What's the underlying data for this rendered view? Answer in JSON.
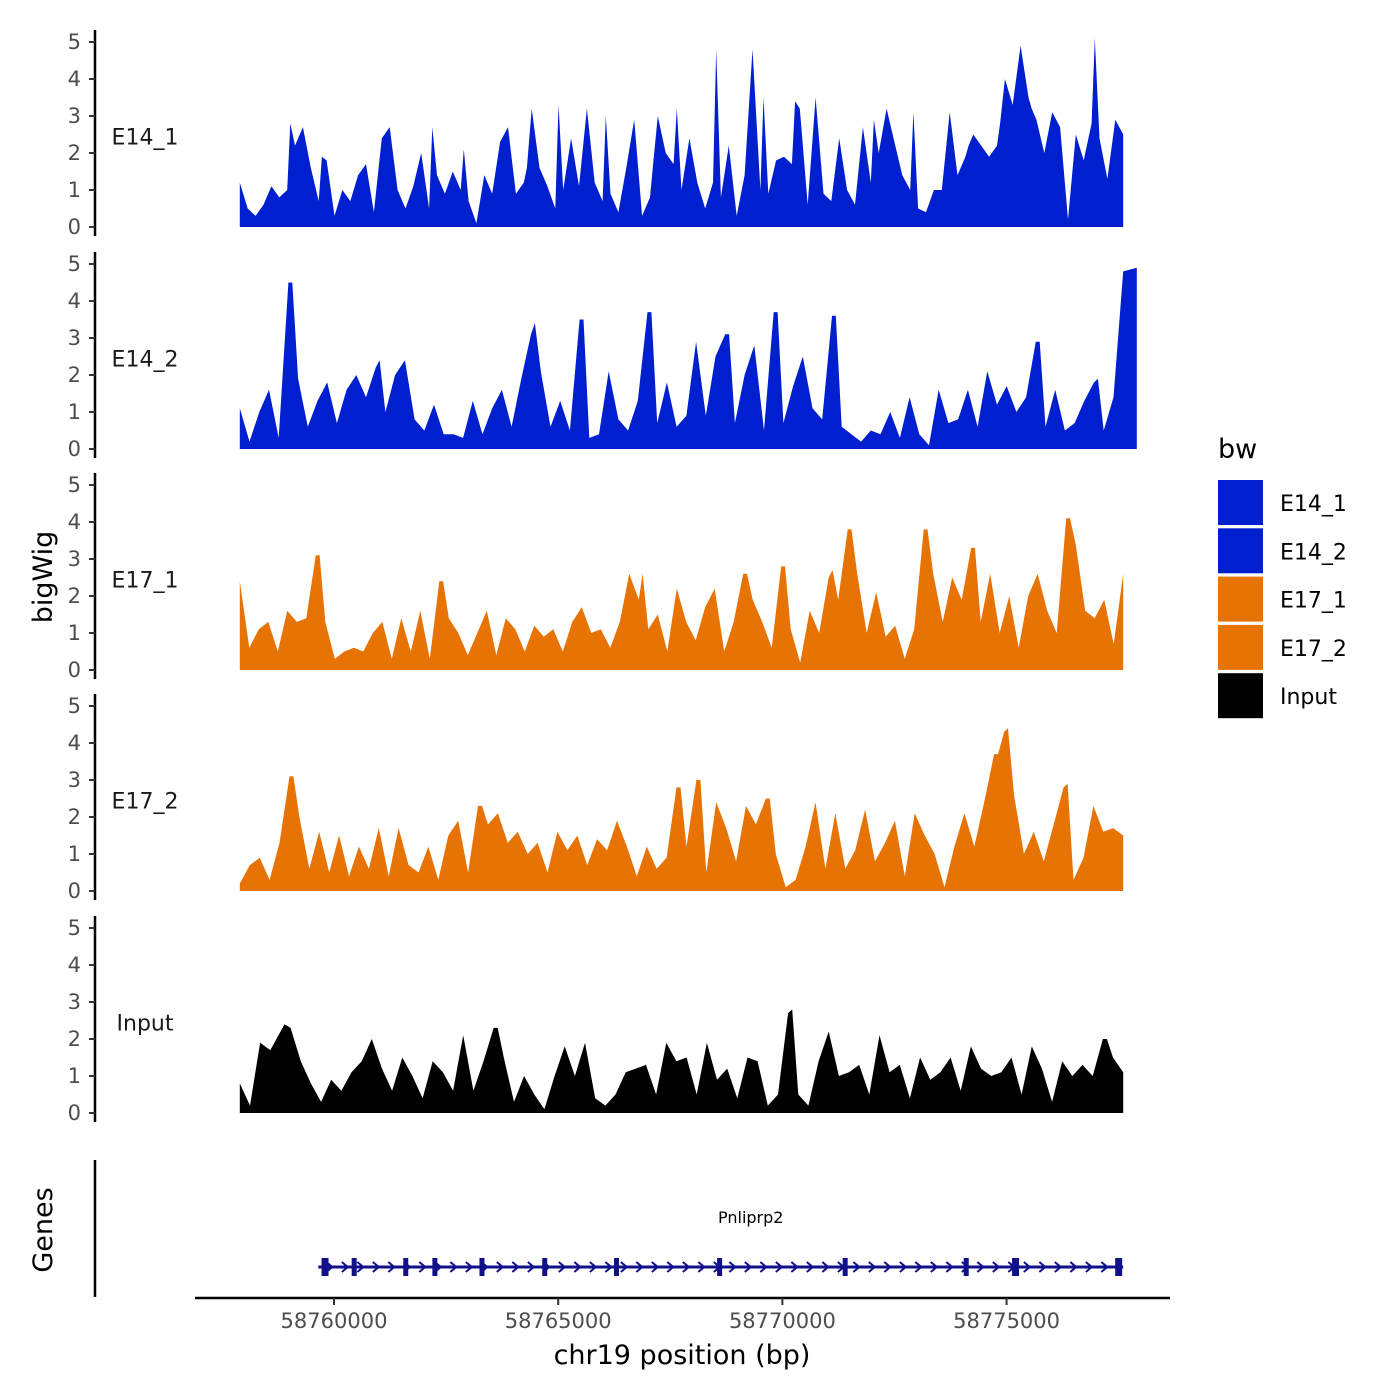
{
  "chart_data": {
    "type": "area",
    "y_axis_title": "bigWig",
    "x_axis_title": "chr19 position (bp)",
    "genes_track_title": "Genes",
    "y_ticks": [
      "0",
      "1",
      "2",
      "3",
      "4",
      "5"
    ],
    "ylim": [
      0,
      5.3
    ],
    "x_ticks": [
      "58760000",
      "58765000",
      "58770000",
      "58775000"
    ],
    "x_tick_values": [
      58760000,
      58765000,
      58770000,
      58775000
    ],
    "xlim": [
      58756900,
      58778600
    ],
    "data_x_range": [
      58757900,
      58777600
    ],
    "legend": {
      "title": "bw",
      "entries": [
        {
          "label": "E14_1",
          "color": "#0020D0"
        },
        {
          "label": "E14_2",
          "color": "#0020D0"
        },
        {
          "label": "E17_1",
          "color": "#E87305"
        },
        {
          "label": "E17_2",
          "color": "#E87305"
        },
        {
          "label": "Input",
          "color": "#000000"
        }
      ]
    },
    "series": [
      {
        "name": "E14_1",
        "color": "#0020D0",
        "values": [
          1.2,
          0.5,
          0.3,
          0.6,
          1.1,
          0.8,
          1.0,
          2.2,
          2.7,
          1.6,
          0.7,
          1.8,
          0.3,
          1.0,
          0.7,
          1.4,
          1.7,
          0.4,
          2.4,
          2.7,
          1.0,
          0.5,
          1.1,
          2.0,
          0.5,
          1.4,
          0.9,
          1.5,
          1.0,
          0.7,
          0.1,
          1.4,
          0.9,
          2.3,
          2.7,
          0.9,
          1.2,
          3.2,
          1.6,
          1.1,
          0.5,
          1.0,
          2.4,
          1.1,
          3.2,
          1.2,
          0.7,
          0.9,
          0.4,
          1.6,
          2.9,
          0.3,
          0.8,
          3.0,
          2.0,
          1.7,
          1.0,
          2.4,
          1.2,
          0.5,
          1.2,
          0.8,
          2.2,
          0.3,
          1.4,
          4.8,
          1.0,
          0.9,
          1.8,
          1.9,
          1.7,
          3.2,
          0.6,
          3.5,
          0.9,
          0.7,
          2.4,
          1.0,
          0.6,
          2.7,
          1.2,
          2.0,
          3.2,
          2.3,
          1.4,
          1.0,
          0.5,
          0.4,
          1.0,
          1.0,
          3.1,
          1.4,
          1.9,
          2.5,
          2.2,
          1.9,
          2.2,
          4.0,
          3.3,
          4.9,
          3.5,
          2.9,
          2.0,
          3.1,
          2.7,
          0.2,
          2.5,
          1.8,
          2.8,
          2.4,
          1.3,
          2.9,
          2.5
        ],
        "peaks": [
          [
            6,
            2.8
          ],
          [
            10,
            1.9
          ],
          [
            24,
            2.7
          ],
          [
            28,
            2.1
          ],
          [
            36,
            1.6
          ],
          [
            40,
            3.3
          ],
          [
            46,
            3.0
          ],
          [
            52,
            1.7
          ],
          [
            55,
            3.2
          ],
          [
            60,
            4.8
          ],
          [
            66,
            3.5
          ],
          [
            70,
            3.4
          ],
          [
            80,
            2.9
          ],
          [
            85,
            3.1
          ],
          [
            92,
            2.2
          ],
          [
            96,
            2.8
          ],
          [
            100,
            3.2
          ],
          [
            108,
            5.1
          ]
        ]
      },
      {
        "name": "E14_2",
        "color": "#0020D0",
        "values": [
          1.1,
          0.2,
          1.0,
          1.6,
          0.3,
          4.5,
          1.9,
          0.6,
          1.3,
          1.8,
          0.7,
          1.6,
          2.0,
          1.4,
          2.2,
          1.0,
          2.0,
          2.4,
          0.8,
          0.5,
          1.2,
          0.4,
          0.4,
          0.3,
          1.3,
          0.4,
          1.1,
          1.6,
          0.6,
          1.9,
          3.1,
          2.1,
          0.6,
          1.3,
          0.5,
          3.5,
          0.3,
          0.4,
          2.1,
          0.8,
          0.5,
          1.3,
          3.7,
          0.7,
          1.8,
          0.6,
          0.9,
          2.9,
          0.9,
          2.5,
          3.1,
          0.7,
          2.0,
          2.8,
          0.5,
          3.7,
          0.7,
          1.7,
          2.5,
          1.1,
          0.8,
          3.6,
          0.6,
          0.4,
          0.2,
          0.5,
          0.4,
          1.0,
          0.3,
          1.4,
          0.4,
          0.1,
          1.6,
          0.7,
          0.8,
          1.6,
          0.6,
          2.1,
          1.2,
          1.7,
          1.0,
          1.4,
          2.9,
          0.6,
          1.6,
          0.5,
          0.7,
          1.3,
          1.8,
          0.5,
          1.4,
          4.8
        ],
        "peaks": [
          [
            5,
            4.5
          ],
          [
            14,
            2.4
          ],
          [
            30,
            3.4
          ],
          [
            35,
            3.5
          ],
          [
            42,
            3.7
          ],
          [
            50,
            3.1
          ],
          [
            55,
            3.7
          ],
          [
            61,
            3.6
          ],
          [
            82,
            2.9
          ],
          [
            88,
            1.9
          ],
          [
            92,
            4.9
          ]
        ]
      },
      {
        "name": "E17_1",
        "color": "#E87305",
        "values": [
          2.4,
          0.6,
          1.1,
          1.3,
          0.5,
          1.6,
          1.3,
          1.4,
          3.1,
          1.3,
          0.3,
          0.5,
          0.6,
          0.5,
          1.0,
          1.3,
          0.3,
          1.4,
          0.5,
          1.6,
          0.3,
          2.4,
          1.4,
          1.0,
          0.4,
          1.0,
          1.6,
          0.4,
          1.4,
          1.1,
          0.5,
          1.2,
          0.9,
          1.1,
          0.5,
          1.3,
          1.7,
          1.0,
          1.1,
          0.6,
          1.3,
          2.6,
          1.9,
          1.1,
          1.5,
          0.5,
          2.2,
          1.3,
          0.8,
          1.7,
          2.2,
          0.5,
          1.3,
          2.6,
          1.9,
          1.3,
          0.6,
          2.8,
          1.1,
          0.2,
          1.6,
          1.0,
          2.5,
          1.9,
          3.8,
          2.6,
          1.0,
          2.1,
          0.9,
          1.2,
          0.3,
          1.1,
          3.8,
          2.6,
          1.3,
          2.5,
          1.9,
          3.3,
          1.3,
          2.6,
          1.0,
          2.0,
          0.6,
          2.0,
          2.6,
          1.6,
          1.0,
          4.1,
          3.4,
          1.6,
          1.4,
          1.9,
          0.7,
          2.6
        ],
        "peaks": [
          [
            8,
            3.1
          ],
          [
            21,
            2.4
          ],
          [
            42,
            2.6
          ],
          [
            53,
            2.6
          ],
          [
            57,
            2.8
          ],
          [
            62,
            2.7
          ],
          [
            64,
            3.8
          ],
          [
            72,
            3.8
          ],
          [
            77,
            3.3
          ],
          [
            87,
            4.1
          ]
        ]
      },
      {
        "name": "E17_2",
        "color": "#E87305",
        "values": [
          0.2,
          0.7,
          0.9,
          0.3,
          1.3,
          3.1,
          2.0,
          0.6,
          1.6,
          0.5,
          1.5,
          0.4,
          1.2,
          0.6,
          1.7,
          0.4,
          1.7,
          0.7,
          0.5,
          1.2,
          0.3,
          1.5,
          1.9,
          0.5,
          2.3,
          1.8,
          2.1,
          1.3,
          1.6,
          1.0,
          1.3,
          0.5,
          1.6,
          1.1,
          1.5,
          0.7,
          1.4,
          1.1,
          1.9,
          1.2,
          0.4,
          1.2,
          0.6,
          0.9,
          2.8,
          1.2,
          3.0,
          0.5,
          2.4,
          1.7,
          0.8,
          2.3,
          1.8,
          2.5,
          1.0,
          0.1,
          0.3,
          1.2,
          2.4,
          0.6,
          2.1,
          0.6,
          1.1,
          2.2,
          0.8,
          1.3,
          1.9,
          0.4,
          2.1,
          1.5,
          1.0,
          0.1,
          1.2,
          2.1,
          1.2,
          2.4,
          3.7,
          4.3,
          2.6,
          1.0,
          1.6,
          0.8,
          1.8,
          2.8,
          0.3,
          0.9,
          2.3,
          1.6,
          1.7,
          1.5
        ],
        "peaks": [
          [
            5,
            3.1
          ],
          [
            24,
            2.3
          ],
          [
            44,
            2.8
          ],
          [
            46,
            3.0
          ],
          [
            53,
            2.5
          ],
          [
            76,
            3.7
          ],
          [
            77,
            4.4
          ],
          [
            83,
            2.9
          ]
        ]
      },
      {
        "name": "Input",
        "color": "#000000",
        "values": [
          0.8,
          0.2,
          1.9,
          1.7,
          2.2,
          2.3,
          1.4,
          0.8,
          0.3,
          0.9,
          0.6,
          1.1,
          1.4,
          2.0,
          1.2,
          0.6,
          1.5,
          1.0,
          0.4,
          1.4,
          1.1,
          0.6,
          2.1,
          0.6,
          1.4,
          2.3,
          1.5,
          0.3,
          1.0,
          0.5,
          0.1,
          1.0,
          1.8,
          1.0,
          1.9,
          0.4,
          0.2,
          0.5,
          1.1,
          1.2,
          1.3,
          0.5,
          1.9,
          1.4,
          1.5,
          0.5,
          1.9,
          0.9,
          1.2,
          0.4,
          1.5,
          1.4,
          0.2,
          0.5,
          2.7,
          0.5,
          0.2,
          1.4,
          2.2,
          1.0,
          1.1,
          1.3,
          0.5,
          2.1,
          1.1,
          1.3,
          0.4,
          1.5,
          0.9,
          1.1,
          1.5,
          0.6,
          1.8,
          1.2,
          1.0,
          1.1,
          1.5,
          0.5,
          1.8,
          1.2,
          0.3,
          1.4,
          1.0,
          1.3,
          1.0,
          2.0,
          1.5,
          1.1
        ],
        "peaks": [
          [
            4,
            2.4
          ],
          [
            25,
            2.3
          ],
          [
            54,
            2.8
          ],
          [
            85,
            2.0
          ]
        ]
      }
    ],
    "genes": [
      {
        "name": "Pnliprp2",
        "start": 58759650,
        "end": 58777600,
        "strand": "+",
        "exons": [
          58759800,
          58760450,
          58761600,
          58762250,
          58763300,
          58764700,
          58766300,
          58768600,
          58771400,
          58774100,
          58775200,
          58777500
        ]
      }
    ]
  }
}
